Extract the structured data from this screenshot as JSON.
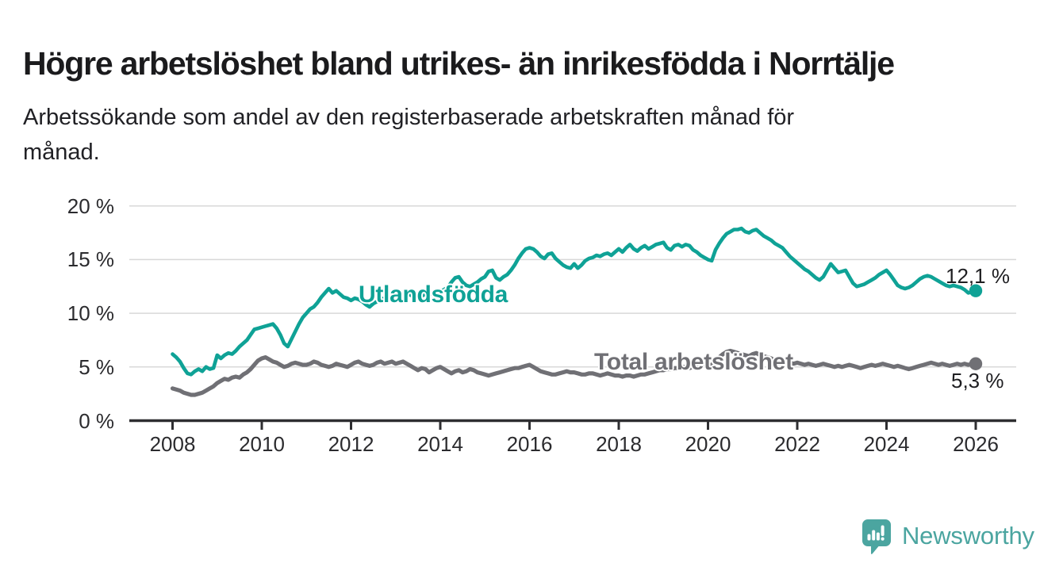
{
  "header": {
    "title": "Högre arbetslöshet bland utrikes- än inrikesfödda i Norrtälje",
    "subtitle_lines": [
      "Arbetssökande som andel av den registerbaserade arbetskraften månad för",
      "månad."
    ]
  },
  "chart_data": {
    "type": "line",
    "title": "Högre arbetslöshet bland utrikes- än inrikesfödda i Norrtälje",
    "subtitle": "Arbetssökande som andel av den registerbaserade arbetskraften månad för månad.",
    "unit": "%",
    "frequency": "monthly",
    "x_start": "2008-01",
    "x_end": "2026-01",
    "ylim": [
      0,
      20
    ],
    "grid": "horizontal",
    "legend": "inline-labels",
    "y_ticks": [
      {
        "value": 0,
        "label": "0 %"
      },
      {
        "value": 5,
        "label": "5 %"
      },
      {
        "value": 10,
        "label": "10 %"
      },
      {
        "value": 15,
        "label": "15 %"
      },
      {
        "value": 20,
        "label": "20 %"
      }
    ],
    "x_ticks": [
      {
        "year": 2008,
        "label": "2008"
      },
      {
        "year": 2010,
        "label": "2010"
      },
      {
        "year": 2012,
        "label": "2012"
      },
      {
        "year": 2014,
        "label": "2014"
      },
      {
        "year": 2016,
        "label": "2016"
      },
      {
        "year": 2018,
        "label": "2018"
      },
      {
        "year": 2020,
        "label": "2020"
      },
      {
        "year": 2022,
        "label": "2022"
      },
      {
        "year": 2024,
        "label": "2024"
      },
      {
        "year": 2026,
        "label": "2026"
      }
    ],
    "series": [
      {
        "name": "Utlandsfödda",
        "color": "#0FA296",
        "end_label": "12,1 %",
        "final_value": 12.1,
        "values": [
          6.2,
          5.9,
          5.5,
          4.9,
          4.4,
          4.3,
          4.6,
          4.8,
          4.6,
          5.0,
          4.8,
          4.9,
          6.1,
          5.8,
          6.1,
          6.3,
          6.2,
          6.5,
          6.9,
          7.2,
          7.5,
          8.0,
          8.5,
          8.6,
          8.7,
          8.8,
          8.9,
          9.0,
          8.6,
          8.0,
          7.2,
          6.9,
          7.6,
          8.3,
          9.0,
          9.6,
          10.0,
          10.4,
          10.6,
          11.0,
          11.5,
          11.9,
          12.3,
          11.9,
          12.1,
          11.8,
          11.5,
          11.4,
          11.2,
          11.4,
          11.3,
          11.1,
          10.8,
          10.6,
          10.9,
          11.1,
          11.3,
          11.4,
          11.2,
          11.4,
          11.5,
          11.7,
          11.6,
          11.8,
          11.7,
          11.5,
          11.4,
          11.6,
          11.8,
          11.7,
          11.9,
          11.8,
          12.0,
          12.2,
          12.4,
          12.9,
          13.3,
          13.4,
          12.9,
          12.6,
          12.5,
          12.7,
          12.9,
          13.2,
          13.4,
          13.9,
          14.0,
          13.3,
          13.1,
          13.4,
          13.6,
          14.0,
          14.5,
          15.1,
          15.6,
          16.0,
          16.1,
          16.0,
          15.7,
          15.3,
          15.1,
          15.5,
          15.6,
          15.1,
          14.8,
          14.5,
          14.3,
          14.2,
          14.6,
          14.2,
          14.5,
          14.9,
          15.1,
          15.2,
          15.4,
          15.3,
          15.5,
          15.6,
          15.4,
          15.7,
          16.0,
          15.7,
          16.1,
          16.4,
          16.0,
          15.8,
          16.1,
          16.3,
          16.0,
          16.2,
          16.4,
          16.5,
          16.6,
          16.1,
          15.9,
          16.3,
          16.4,
          16.2,
          16.4,
          16.3,
          15.9,
          15.7,
          15.4,
          15.2,
          15.0,
          14.9,
          15.9,
          16.5,
          17.0,
          17.4,
          17.6,
          17.8,
          17.8,
          17.9,
          17.6,
          17.5,
          17.7,
          17.8,
          17.5,
          17.2,
          17.0,
          16.8,
          16.5,
          16.3,
          16.1,
          15.7,
          15.3,
          15.0,
          14.7,
          14.4,
          14.1,
          13.9,
          13.6,
          13.3,
          13.1,
          13.4,
          14.0,
          14.6,
          14.2,
          13.8,
          13.9,
          14.0,
          13.4,
          12.8,
          12.5,
          12.6,
          12.7,
          12.9,
          13.1,
          13.3,
          13.6,
          13.8,
          14.0,
          13.6,
          13.1,
          12.6,
          12.4,
          12.3,
          12.4,
          12.6,
          12.9,
          13.2,
          13.4,
          13.5,
          13.4,
          13.2,
          13.0,
          12.8,
          12.6,
          12.5,
          12.6,
          12.5,
          12.4,
          12.2,
          11.9,
          12.0,
          12.1
        ]
      },
      {
        "name": "Total arbetslöshet",
        "color": "#707075",
        "end_label": "5,3 %",
        "final_value": 5.3,
        "values": [
          3.0,
          2.9,
          2.8,
          2.6,
          2.5,
          2.4,
          2.4,
          2.5,
          2.6,
          2.8,
          3.0,
          3.2,
          3.5,
          3.7,
          3.9,
          3.8,
          4.0,
          4.1,
          4.0,
          4.3,
          4.5,
          4.8,
          5.2,
          5.6,
          5.8,
          5.9,
          5.7,
          5.5,
          5.4,
          5.2,
          5.0,
          5.1,
          5.3,
          5.4,
          5.3,
          5.2,
          5.2,
          5.3,
          5.5,
          5.4,
          5.2,
          5.1,
          5.0,
          5.1,
          5.3,
          5.2,
          5.1,
          5.0,
          5.2,
          5.4,
          5.5,
          5.3,
          5.2,
          5.1,
          5.2,
          5.4,
          5.5,
          5.3,
          5.4,
          5.5,
          5.3,
          5.4,
          5.5,
          5.3,
          5.1,
          4.9,
          4.7,
          4.9,
          4.8,
          4.5,
          4.7,
          4.9,
          5.0,
          4.8,
          4.6,
          4.4,
          4.6,
          4.7,
          4.5,
          4.6,
          4.8,
          4.7,
          4.5,
          4.4,
          4.3,
          4.2,
          4.3,
          4.4,
          4.5,
          4.6,
          4.7,
          4.8,
          4.9,
          4.9,
          5.0,
          5.1,
          5.2,
          5.0,
          4.8,
          4.6,
          4.5,
          4.4,
          4.3,
          4.3,
          4.4,
          4.5,
          4.6,
          4.5,
          4.5,
          4.4,
          4.3,
          4.3,
          4.4,
          4.4,
          4.3,
          4.2,
          4.3,
          4.4,
          4.3,
          4.2,
          4.2,
          4.1,
          4.2,
          4.2,
          4.1,
          4.2,
          4.3,
          4.3,
          4.4,
          4.5,
          4.6,
          4.7,
          4.7,
          4.8,
          4.8,
          4.9,
          4.9,
          5.0,
          5.0,
          4.9,
          5.0,
          5.0,
          5.1,
          5.1,
          5.1,
          5.2,
          5.5,
          5.9,
          6.2,
          6.4,
          6.5,
          6.4,
          6.3,
          6.2,
          6.1,
          6.0,
          6.2,
          6.3,
          6.1,
          6.0,
          5.9,
          5.8,
          5.6,
          5.5,
          5.6,
          5.5,
          5.4,
          5.3,
          5.4,
          5.3,
          5.2,
          5.3,
          5.2,
          5.1,
          5.2,
          5.3,
          5.2,
          5.1,
          5.0,
          5.1,
          5.0,
          5.1,
          5.2,
          5.1,
          5.0,
          4.9,
          5.0,
          5.1,
          5.2,
          5.1,
          5.2,
          5.3,
          5.2,
          5.1,
          5.0,
          5.1,
          5.0,
          4.9,
          4.8,
          4.9,
          5.0,
          5.1,
          5.2,
          5.3,
          5.4,
          5.3,
          5.2,
          5.3,
          5.2,
          5.1,
          5.2,
          5.3,
          5.2,
          5.3,
          5.2,
          5.3,
          5.3
        ]
      }
    ],
    "colors": {
      "accent_teal": "#0FA296",
      "series_gray": "#707075",
      "grid": "#d8d8d8",
      "axis": "#2e2e31",
      "tick_text": "#2b2b2e",
      "value_text": "#1e1e21",
      "brand_teal": "#4BA5A0"
    }
  },
  "footer": {
    "brand": "Newsworthy"
  }
}
